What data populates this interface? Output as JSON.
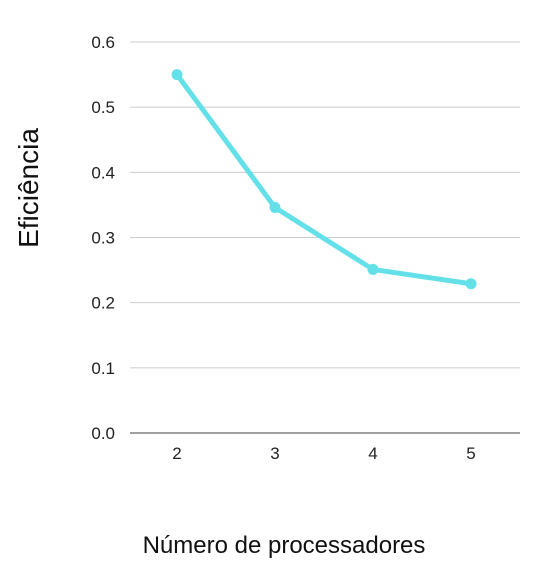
{
  "chart_data": {
    "type": "line",
    "xlabel": "Número de processadores",
    "ylabel": "Eficiência",
    "categories": [
      "2",
      "3",
      "4",
      "5"
    ],
    "series": [
      {
        "values": [
          0.55,
          0.346,
          0.251,
          0.229
        ]
      }
    ],
    "ylim": [
      0,
      0.6
    ],
    "yticks": [
      "0.0",
      "0.1",
      "0.2",
      "0.3",
      "0.4",
      "0.5",
      "0.6"
    ],
    "grid": true,
    "colors": {
      "line": "#64e1e8",
      "grid": "#cccccc",
      "axis": "#666666"
    }
  }
}
